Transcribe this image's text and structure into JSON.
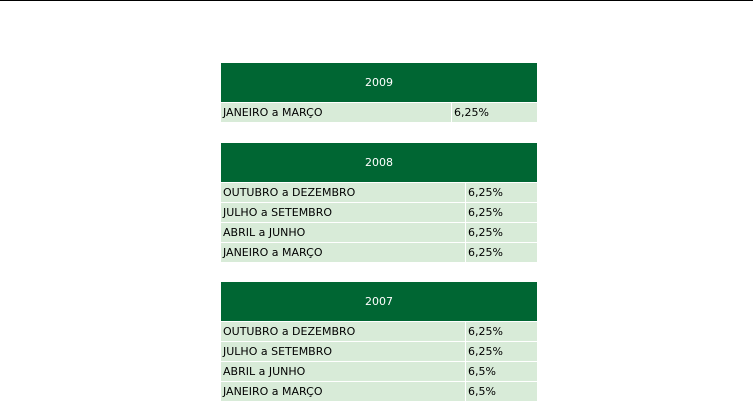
{
  "tables": [
    {
      "year": "2009",
      "rows": [
        {
          "period": "JANEIRO a MARÇO",
          "rate": "6,25%"
        }
      ]
    },
    {
      "year": "2008",
      "rows": [
        {
          "period": "OUTUBRO a DEZEMBRO",
          "rate": "6,25%"
        },
        {
          "period": "JULHO a SETEMBRO",
          "rate": "6,25%"
        },
        {
          "period": "ABRIL a JUNHO",
          "rate": "6,25%"
        },
        {
          "period": "JANEIRO a MARÇO",
          "rate": "6,25%"
        }
      ]
    },
    {
      "year": "2007",
      "rows": [
        {
          "period": "OUTUBRO a DEZEMBRO",
          "rate": "6,25%"
        },
        {
          "period": "JULHO a SETEMBRO",
          "rate": "6,25%"
        },
        {
          "period": "ABRIL a JUNHO",
          "rate": "6,5%"
        },
        {
          "period": "JANEIRO a MARÇO",
          "rate": "6,5%"
        }
      ]
    }
  ],
  "colors": {
    "header_bg": "#006633",
    "header_text": "#ffffff",
    "row_bg": "#d8ebd8"
  }
}
